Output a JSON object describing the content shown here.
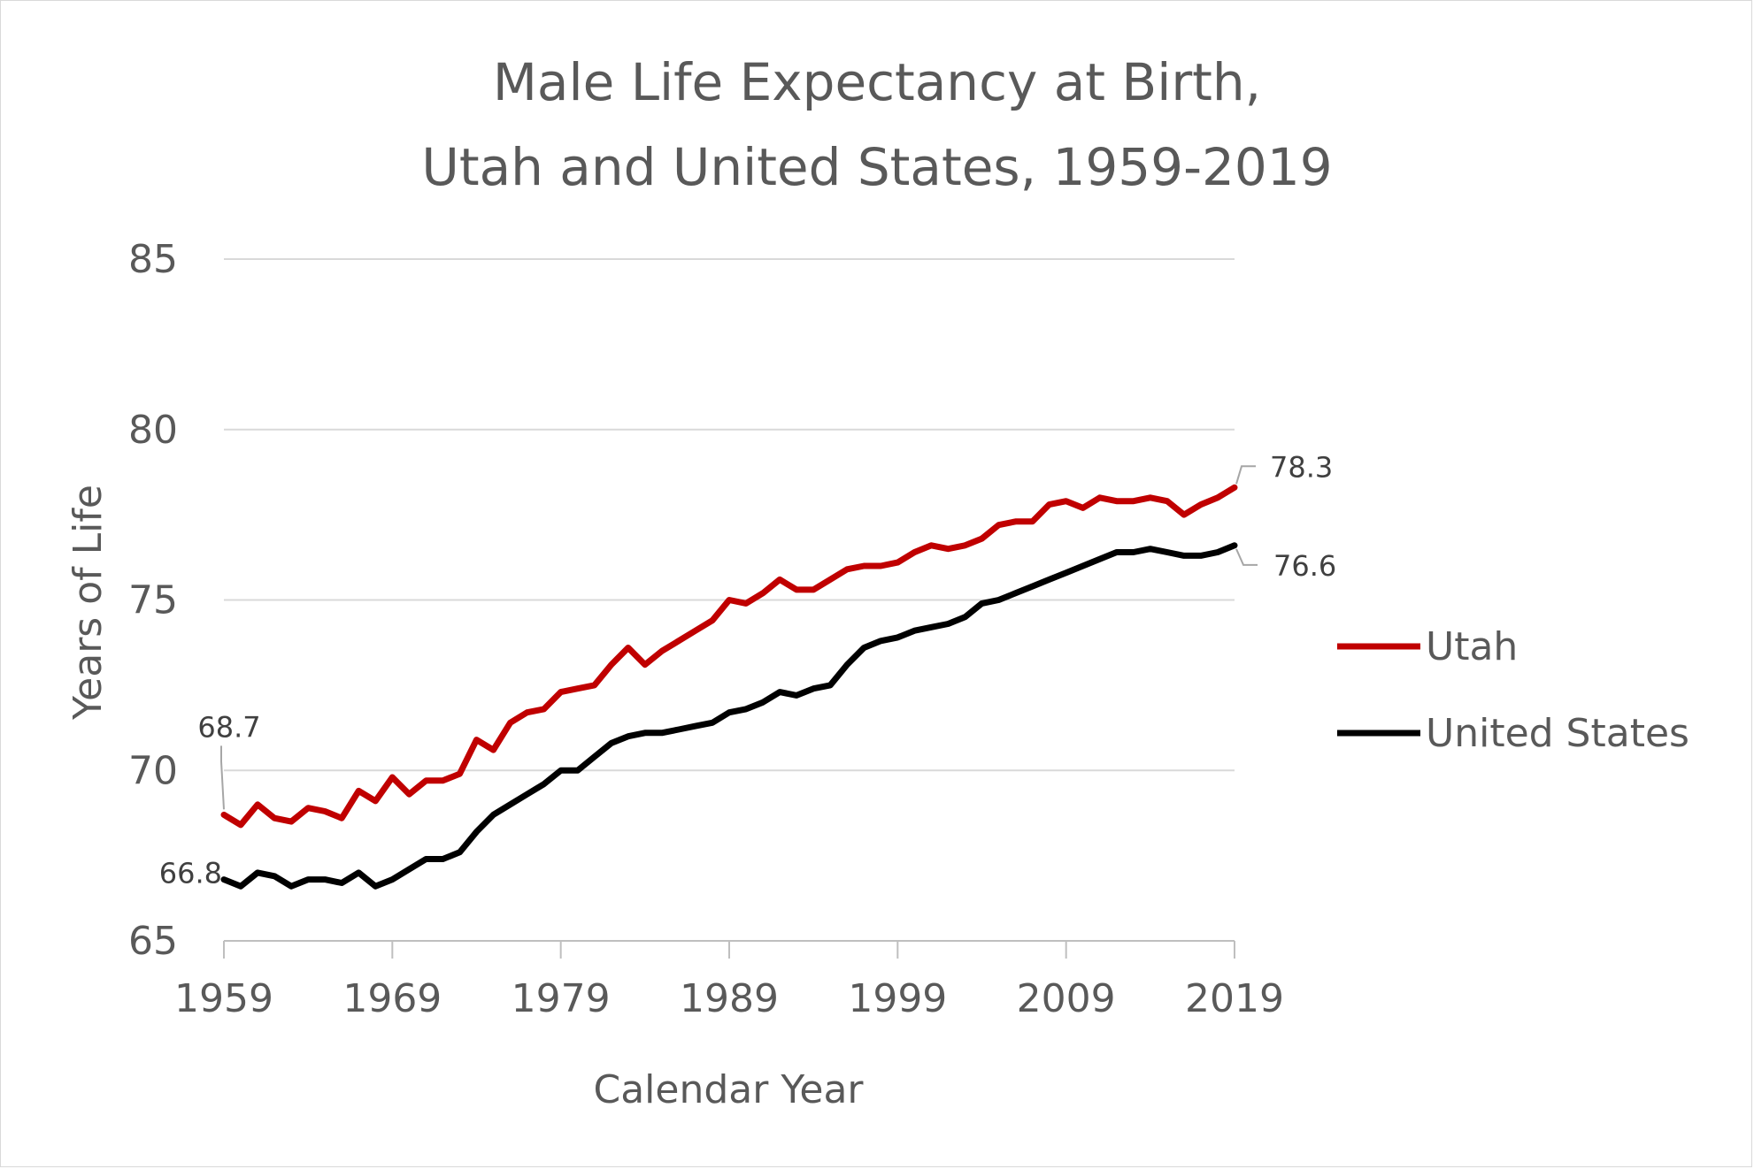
{
  "chart_data": {
    "type": "line",
    "title_line1": "Male Life Expectancy at Birth,",
    "title_line2": "Utah and United States, 1959-2019",
    "xlabel": "Calendar Year",
    "ylabel": "Years of Life",
    "ylim": [
      65,
      85
    ],
    "yticks": [
      "65",
      "70",
      "75",
      "80",
      "85"
    ],
    "xlim": [
      1959,
      2019
    ],
    "xticks": [
      "1959",
      "1969",
      "1979",
      "1989",
      "1999",
      "2009",
      "2019"
    ],
    "grid": true,
    "legend_position": "right",
    "x": [
      1959,
      1960,
      1961,
      1962,
      1963,
      1964,
      1965,
      1966,
      1967,
      1968,
      1969,
      1970,
      1971,
      1972,
      1973,
      1974,
      1975,
      1976,
      1977,
      1978,
      1979,
      1980,
      1981,
      1982,
      1983,
      1984,
      1985,
      1986,
      1987,
      1988,
      1989,
      1990,
      1991,
      1992,
      1993,
      1994,
      1995,
      1996,
      1997,
      1998,
      1999,
      2000,
      2001,
      2002,
      2003,
      2004,
      2005,
      2006,
      2007,
      2008,
      2009,
      2010,
      2011,
      2012,
      2013,
      2014,
      2015,
      2016,
      2017,
      2018,
      2019
    ],
    "series": [
      {
        "name": "Utah",
        "color": "#c00000",
        "values": [
          68.7,
          68.4,
          69.0,
          68.6,
          68.5,
          68.9,
          68.8,
          68.6,
          69.4,
          69.1,
          69.8,
          69.3,
          69.7,
          69.7,
          69.9,
          70.9,
          70.6,
          71.4,
          71.7,
          71.8,
          72.3,
          72.4,
          72.5,
          73.1,
          73.6,
          73.1,
          73.5,
          73.8,
          74.1,
          74.4,
          75.0,
          74.9,
          75.2,
          75.6,
          75.3,
          75.3,
          75.6,
          75.9,
          76.0,
          76.0,
          76.1,
          76.4,
          76.6,
          76.5,
          76.6,
          76.8,
          77.2,
          77.3,
          77.3,
          77.8,
          77.9,
          77.7,
          78.0,
          77.9,
          77.9,
          78.0,
          77.9,
          77.5,
          77.8,
          78.0,
          78.3
        ]
      },
      {
        "name": "United States",
        "color": "#000000",
        "values": [
          66.8,
          66.6,
          67.0,
          66.9,
          66.6,
          66.8,
          66.8,
          66.7,
          67.0,
          66.6,
          66.8,
          67.1,
          67.4,
          67.4,
          67.6,
          68.2,
          68.7,
          69.0,
          69.3,
          69.6,
          70.0,
          70.0,
          70.4,
          70.8,
          71.0,
          71.1,
          71.1,
          71.2,
          71.3,
          71.4,
          71.7,
          71.8,
          72.0,
          72.3,
          72.2,
          72.4,
          72.5,
          73.1,
          73.6,
          73.8,
          73.9,
          74.1,
          74.2,
          74.3,
          74.5,
          74.9,
          75.0,
          75.2,
          75.4,
          75.6,
          75.8,
          76.0,
          76.2,
          76.4,
          76.4,
          76.5,
          76.4,
          76.3,
          76.3,
          76.4,
          76.6
        ]
      }
    ],
    "data_labels": {
      "utah_first": "68.7",
      "us_first": "66.8",
      "utah_last": "78.3",
      "us_last": "76.6"
    }
  }
}
